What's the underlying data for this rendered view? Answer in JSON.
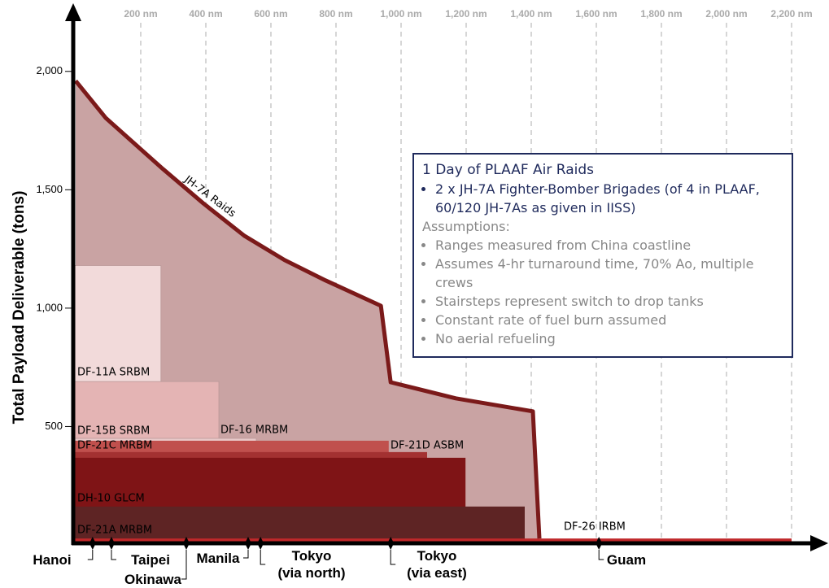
{
  "chart_data": {
    "type": "area",
    "y_label": "Total Payload Deliverable (tons)",
    "xlim": [
      0,
      2300
    ],
    "ylim": [
      0,
      2250
    ],
    "xticks": [
      {
        "value": 200,
        "label": "200 nm"
      },
      {
        "value": 400,
        "label": "400 nm"
      },
      {
        "value": 600,
        "label": "600 nm"
      },
      {
        "value": 800,
        "label": "800 nm"
      },
      {
        "value": 1000,
        "label": "1,000 nm"
      },
      {
        "value": 1200,
        "label": "1,200 nm"
      },
      {
        "value": 1400,
        "label": "1,400 nm"
      },
      {
        "value": 1600,
        "label": "1,600 nm"
      },
      {
        "value": 1800,
        "label": "1,800 nm"
      },
      {
        "value": 2000,
        "label": "2,000 nm"
      },
      {
        "value": 2200,
        "label": "2,200 nm"
      }
    ],
    "yticks": [
      500,
      {
        "value": 1000,
        "label": "1,000"
      },
      {
        "value": 1500,
        "label": "1,500"
      },
      {
        "value": 2000,
        "label": "2,000"
      }
    ],
    "grid": true,
    "series": [
      {
        "name": "JH-7A Raids",
        "color": "#7b1a1a",
        "fill": "#c9a3a3",
        "x": [
          0,
          92,
          268,
          392,
          518,
          642,
          768,
          938,
          968,
          1168,
          1405,
          1425
        ],
        "values": [
          1960,
          1804,
          1588,
          1443,
          1306,
          1203,
          1117,
          1010,
          687,
          619,
          564,
          27
        ]
      }
    ],
    "missiles": [
      {
        "name": "DF-11A SRBM",
        "range": 262,
        "payload": 1180,
        "color": "#f2dada"
      },
      {
        "name": "DF-15B SRBM",
        "range": 440,
        "payload": 690,
        "color": "#e4b4b4"
      },
      {
        "name": "DF-16 MRBM",
        "range": 555,
        "payload": 450,
        "color": "#e9caca"
      },
      {
        "name": "DF-21D ASBM",
        "range": 962,
        "payload": 440,
        "color": "#c0504d"
      },
      {
        "name": "DF-21C MRBM",
        "range": 1080,
        "payload": 392,
        "color": "#a33131"
      },
      {
        "name": "DH-10 GLCM",
        "range": 1198,
        "payload": 368,
        "color": "#7f1416"
      },
      {
        "name": "DF-21A MRBM",
        "range": 1380,
        "payload": 162,
        "color": "#5e2424"
      },
      {
        "name": "DF-26 IRBM",
        "range": 2200,
        "payload": 27,
        "color": "#c0282a"
      }
    ],
    "locations": [
      {
        "label": "Hanoi",
        "x": 52
      },
      {
        "label": "Taipei",
        "x": 110
      },
      {
        "label": "Okinawa",
        "x": 340
      },
      {
        "label": "Manila",
        "x": 530
      },
      {
        "label": "Tokyo\n(via north)",
        "x": 568
      },
      {
        "label": "Tokyo\n(via east)",
        "x": 968
      },
      {
        "label": "Guam",
        "x": 1608
      }
    ],
    "note": {
      "title": "1 Day of PLAAF Air Raids",
      "bullets": [
        "2 x JH-7A Fighter-Bomber Brigades (of 4 in PLAAF, 60/120 JH-7As as given in IISS)"
      ],
      "assumptions_title": "Assumptions:",
      "assumptions": [
        "Ranges measured from China coastline",
        "Assumes 4-hr turnaround time, 70% Ao, multiple crews",
        "Stairsteps represent switch to drop tanks",
        "Constant rate of fuel burn assumed",
        "No aerial refueling"
      ]
    }
  }
}
